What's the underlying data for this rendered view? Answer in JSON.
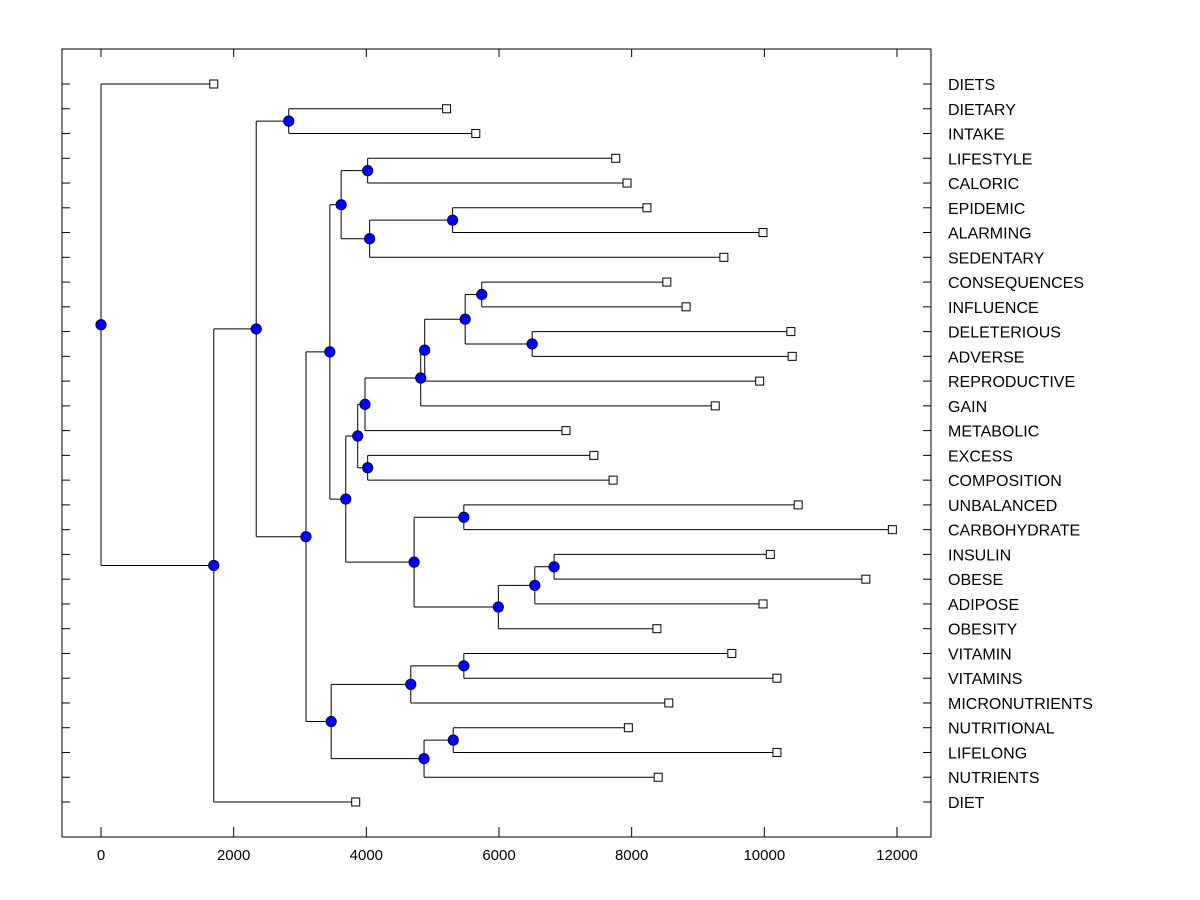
{
  "chart_data": {
    "type": "dendrogram",
    "title": "",
    "xlabel": "",
    "ylabel": "",
    "xlim": [
      -600,
      12500
    ],
    "xticks": [
      0,
      2000,
      4000,
      6000,
      8000,
      10000,
      12000
    ],
    "xtick_labels": [
      "0",
      "2000",
      "4000",
      "6000",
      "8000",
      "10000",
      "12000"
    ],
    "grid": false,
    "orientation": "left-to-right",
    "colors": {
      "node_fill": "#0000ff",
      "line": "#000000",
      "leaf_fill": "#ffffff"
    },
    "leaves": [
      {
        "label": "DIETS",
        "value": 1700
      },
      {
        "label": "DIETARY",
        "value": 5210
      },
      {
        "label": "INTAKE",
        "value": 5650
      },
      {
        "label": "LIFESTYLE",
        "value": 7760
      },
      {
        "label": "CALORIC",
        "value": 7930
      },
      {
        "label": "EPIDEMIC",
        "value": 8230
      },
      {
        "label": "ALARMING",
        "value": 9980
      },
      {
        "label": "SEDENTARY",
        "value": 9390
      },
      {
        "label": "CONSEQUENCES",
        "value": 8530
      },
      {
        "label": "INFLUENCE",
        "value": 8820
      },
      {
        "label": "DELETERIOUS",
        "value": 10400
      },
      {
        "label": "ADVERSE",
        "value": 10420
      },
      {
        "label": "REPRODUCTIVE",
        "value": 9930
      },
      {
        "label": "GAIN",
        "value": 9260
      },
      {
        "label": "METABOLIC",
        "value": 7010
      },
      {
        "label": "EXCESS",
        "value": 7430
      },
      {
        "label": "COMPOSITION",
        "value": 7720
      },
      {
        "label": "UNBALANCED",
        "value": 10510
      },
      {
        "label": "CARBOHYDRATE",
        "value": 11930
      },
      {
        "label": "INSULIN",
        "value": 10090
      },
      {
        "label": "OBESE",
        "value": 11530
      },
      {
        "label": "ADIPOSE",
        "value": 9980
      },
      {
        "label": "OBESITY",
        "value": 8380
      },
      {
        "label": "VITAMIN",
        "value": 9510
      },
      {
        "label": "VITAMINS",
        "value": 10190
      },
      {
        "label": "MICRONUTRIENTS",
        "value": 8560
      },
      {
        "label": "NUTRITIONAL",
        "value": 7950
      },
      {
        "label": "LIFELONG",
        "value": 10190
      },
      {
        "label": "NUTRIENTS",
        "value": 8400
      },
      {
        "label": "DIET",
        "value": 3840
      }
    ],
    "tree": {
      "value": 0,
      "children": [
        {
          "leaf": 0
        },
        {
          "value": 1700,
          "children": [
            {
              "value": 2340,
              "children": [
                {
                  "value": 2830,
                  "children": [
                    {
                      "leaf": 1
                    },
                    {
                      "leaf": 2
                    }
                  ]
                },
                {
                  "value": 3090,
                  "children": [
                    {
                      "value": 3450,
                      "children": [
                        {
                          "value": 3620,
                          "children": [
                            {
                              "value": 4020,
                              "children": [
                                {
                                  "leaf": 3
                                },
                                {
                                  "leaf": 4
                                }
                              ]
                            },
                            {
                              "value": 4050,
                              "children": [
                                {
                                  "value": 5300,
                                  "children": [
                                    {
                                      "leaf": 5
                                    },
                                    {
                                      "leaf": 6
                                    }
                                  ]
                                },
                                {
                                  "leaf": 7
                                }
                              ]
                            }
                          ]
                        },
                        {
                          "value": 3690,
                          "children": [
                            {
                              "value": 3870,
                              "children": [
                                {
                                  "value": 3980,
                                  "children": [
                                    {
                                      "value": 4820,
                                      "children": [
                                        {
                                          "value": 4880,
                                          "children": [
                                            {
                                              "value": 5490,
                                              "children": [
                                                {
                                                  "value": 5740,
                                                  "children": [
                                                    {
                                                      "leaf": 8
                                                    },
                                                    {
                                                      "leaf": 9
                                                    }
                                                  ]
                                                },
                                                {
                                                  "value": 6500,
                                                  "children": [
                                                    {
                                                      "leaf": 10
                                                    },
                                                    {
                                                      "leaf": 11
                                                    }
                                                  ]
                                                }
                                              ]
                                            },
                                            {
                                              "leaf": 12
                                            }
                                          ]
                                        },
                                        {
                                          "leaf": 13
                                        }
                                      ]
                                    },
                                    {
                                      "leaf": 14
                                    }
                                  ]
                                },
                                {
                                  "value": 4020,
                                  "children": [
                                    {
                                      "leaf": 15
                                    },
                                    {
                                      "leaf": 16
                                    }
                                  ]
                                }
                              ]
                            },
                            {
                              "value": 4720,
                              "children": [
                                {
                                  "value": 5470,
                                  "children": [
                                    {
                                      "leaf": 17
                                    },
                                    {
                                      "leaf": 18
                                    }
                                  ]
                                },
                                {
                                  "value": 5990,
                                  "children": [
                                    {
                                      "value": 6540,
                                      "children": [
                                        {
                                          "value": 6830,
                                          "children": [
                                            {
                                              "leaf": 19
                                            },
                                            {
                                              "leaf": 20
                                            }
                                          ]
                                        },
                                        {
                                          "leaf": 21
                                        }
                                      ]
                                    },
                                    {
                                      "leaf": 22
                                    }
                                  ]
                                }
                              ]
                            }
                          ]
                        }
                      ]
                    },
                    {
                      "value": 3470,
                      "children": [
                        {
                          "value": 4670,
                          "children": [
                            {
                              "value": 5470,
                              "children": [
                                {
                                  "leaf": 23
                                },
                                {
                                  "leaf": 24
                                }
                              ]
                            },
                            {
                              "leaf": 25
                            }
                          ]
                        },
                        {
                          "value": 4870,
                          "children": [
                            {
                              "value": 5310,
                              "children": [
                                {
                                  "leaf": 26
                                },
                                {
                                  "leaf": 27
                                }
                              ]
                            },
                            {
                              "leaf": 28
                            }
                          ]
                        }
                      ]
                    }
                  ]
                }
              ]
            },
            {
              "leaf": 29
            }
          ]
        }
      ]
    }
  }
}
